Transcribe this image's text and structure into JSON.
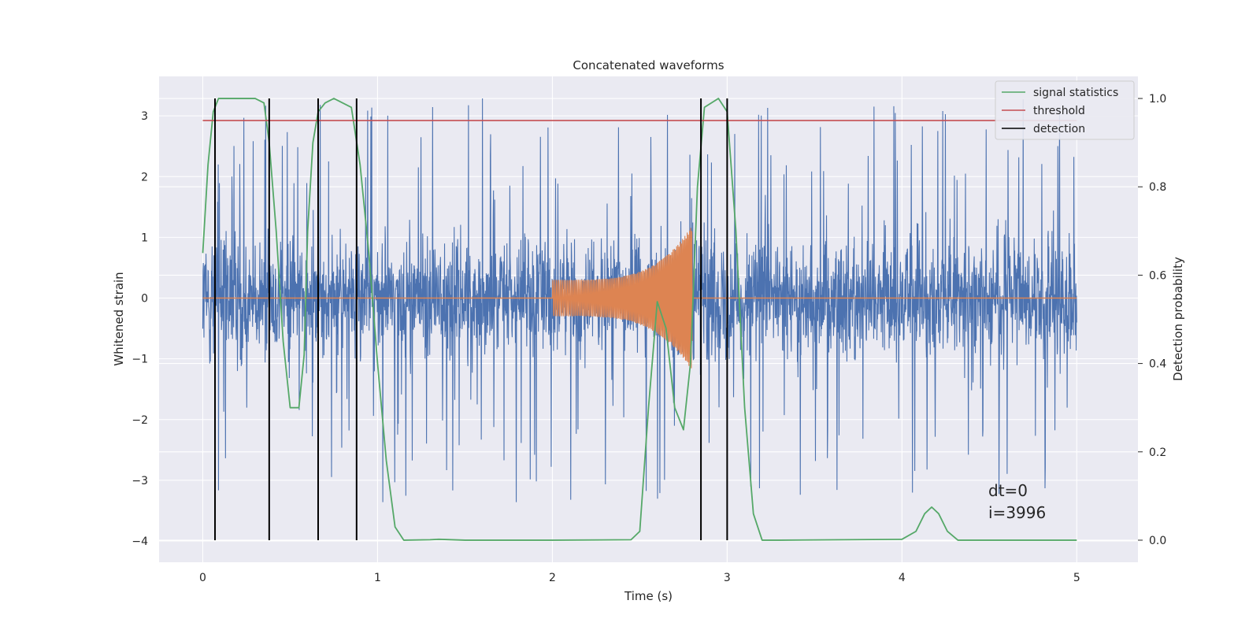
{
  "chart_data": {
    "type": "line",
    "title": "Concatenated waveforms",
    "xlabel": "Time (s)",
    "ylabel_left": "Whitened strain",
    "ylabel_right": "Detection probability",
    "xlim": [
      -0.25,
      5.35
    ],
    "ylim_left": [
      -4.35,
      3.65
    ],
    "ylim_right": [
      -0.05,
      1.05
    ],
    "x_ticks": [
      0,
      1,
      2,
      3,
      4,
      5
    ],
    "x_tick_labels": [
      "0",
      "1",
      "2",
      "3",
      "4",
      "5"
    ],
    "y_left_ticks": [
      -4,
      -3,
      -2,
      -1,
      0,
      1,
      2,
      3
    ],
    "y_left_tick_labels": [
      "−4",
      "−3",
      "−2",
      "−1",
      "0",
      "1",
      "2",
      "3"
    ],
    "y_right_ticks": [
      0.0,
      0.2,
      0.4,
      0.6,
      0.8,
      1.0
    ],
    "y_right_tick_labels": [
      "0.0",
      "0.2",
      "0.4",
      "0.6",
      "0.8",
      "1.0"
    ],
    "grid": true,
    "legend_position": "top-right",
    "legend": [
      "signal statistics",
      "threshold",
      "detection"
    ],
    "series": [
      {
        "name": "strain",
        "axis": "left",
        "color": "#4c72b0",
        "kind": "noise",
        "x_range": [
          0,
          5
        ],
        "amplitude_typical": 1.2,
        "amplitude_peak": 3.4
      },
      {
        "name": "injected signal",
        "axis": "left",
        "color": "#dd8452",
        "kind": "chirp",
        "x_range": [
          2.0,
          2.8
        ],
        "amplitude_start": 0.3,
        "amplitude_end": 1.2
      },
      {
        "name": "signal statistics",
        "axis": "right",
        "color": "#55a868",
        "x": [
          0.0,
          0.03,
          0.06,
          0.09,
          0.12,
          0.15,
          0.3,
          0.35,
          0.38,
          0.42,
          0.46,
          0.5,
          0.55,
          0.58,
          0.6,
          0.63,
          0.66,
          0.7,
          0.75,
          0.85,
          0.9,
          0.95,
          1.0,
          1.05,
          1.1,
          1.15,
          1.3,
          1.35,
          1.5,
          2.0,
          2.45,
          2.5,
          2.55,
          2.6,
          2.65,
          2.7,
          2.75,
          2.79,
          2.83,
          2.87,
          2.95,
          3.0,
          3.05,
          3.1,
          3.15,
          3.2,
          3.3,
          4.0,
          4.08,
          4.13,
          4.17,
          4.21,
          4.26,
          4.32,
          5.0
        ],
        "y": [
          0.65,
          0.85,
          0.97,
          1.0,
          1.0,
          1.0,
          1.0,
          0.99,
          0.9,
          0.7,
          0.45,
          0.3,
          0.3,
          0.42,
          0.7,
          0.9,
          0.97,
          0.99,
          1.0,
          0.98,
          0.85,
          0.65,
          0.4,
          0.18,
          0.03,
          0.0,
          0.001,
          0.002,
          0.0,
          0.0,
          0.001,
          0.02,
          0.3,
          0.54,
          0.48,
          0.3,
          0.25,
          0.4,
          0.8,
          0.98,
          1.0,
          0.97,
          0.7,
          0.3,
          0.06,
          0.0,
          0.0,
          0.002,
          0.02,
          0.06,
          0.075,
          0.06,
          0.02,
          0.0,
          0.0
        ]
      },
      {
        "name": "threshold",
        "axis": "right",
        "color": "#c44e52",
        "value": 0.95,
        "x_range": [
          0,
          5
        ]
      },
      {
        "name": "detection",
        "axis": "right",
        "color": "#000000",
        "kind": "vlines",
        "x": [
          0.07,
          0.38,
          0.66,
          0.88,
          2.85,
          3.0
        ],
        "y_range": [
          0,
          1.0
        ]
      }
    ],
    "annotations": [
      "dt=0",
      "i=3996"
    ]
  }
}
